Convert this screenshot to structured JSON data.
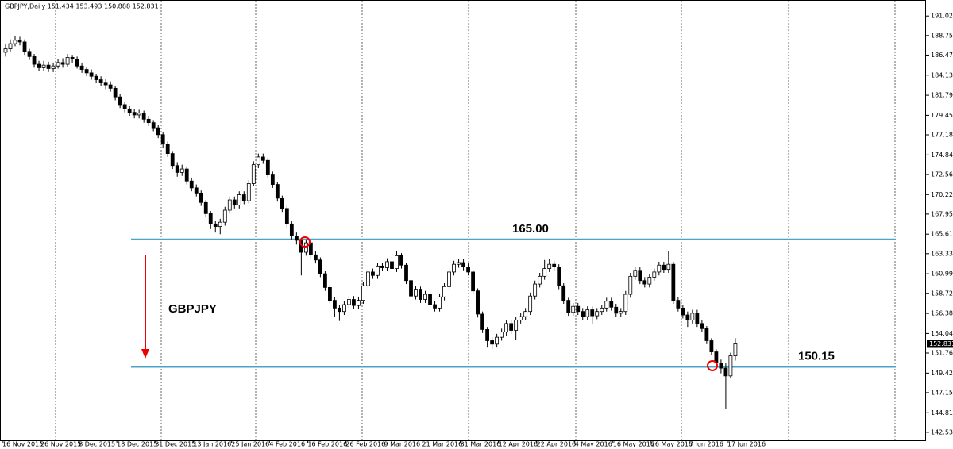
{
  "chart_data": {
    "type": "candlestick",
    "title": "GBPJPY,Daily  151.434 153.493 150.888 152.831",
    "annotation": "GBPJPY",
    "up_color": "#ffffff",
    "down_color": "#000000",
    "level_color": "#4ba3c7",
    "levels": [
      {
        "value": 165.0,
        "label": "165.00"
      },
      {
        "value": 150.15,
        "label": "150.15"
      }
    ],
    "categories": [
      "16 Nov 2015",
      null,
      null,
      null,
      null,
      null,
      null,
      null,
      "26 Nov 2015",
      null,
      null,
      null,
      null,
      null,
      null,
      null,
      "8 Dec 2015",
      null,
      null,
      null,
      null,
      null,
      null,
      null,
      "18 Dec 2015",
      null,
      null,
      null,
      null,
      null,
      null,
      null,
      "31 Dec 2015",
      null,
      null,
      null,
      null,
      null,
      null,
      null,
      "13 Jan 2016",
      null,
      null,
      null,
      null,
      null,
      null,
      null,
      "25 Jan 2016",
      null,
      null,
      null,
      null,
      null,
      null,
      null,
      "4 Feb 2016",
      null,
      null,
      null,
      null,
      null,
      null,
      null,
      "16 Feb 2016",
      null,
      null,
      null,
      null,
      null,
      null,
      null,
      "26 Feb 2016",
      null,
      null,
      null,
      null,
      null,
      null,
      null,
      "9 Mar 2016",
      null,
      null,
      null,
      null,
      null,
      null,
      null,
      "21 Mar 2016",
      null,
      null,
      null,
      null,
      null,
      null,
      null,
      "31 Mar 2016",
      null,
      null,
      null,
      null,
      null,
      null,
      null,
      "12 Apr 2016",
      null,
      null,
      null,
      null,
      null,
      null,
      null,
      "22 Apr 2016",
      null,
      null,
      null,
      null,
      null,
      null,
      null,
      "4 May 2016",
      null,
      null,
      null,
      null,
      null,
      null,
      null,
      "16 May 2016",
      null,
      null,
      null,
      null,
      null,
      null,
      null,
      "26 May 2016",
      null,
      null,
      null,
      null,
      null,
      null,
      null,
      "7 Jun 2016",
      null,
      null,
      null,
      null,
      null,
      null,
      null,
      "17 Jun 2016",
      null
    ],
    "open": [
      186.8,
      187.2,
      187.8,
      188.2,
      188.0,
      186.9,
      186.3,
      185.4,
      185.0,
      185.3,
      184.9,
      185.2,
      185.6,
      185.4,
      186.2,
      186.0,
      185.2,
      184.8,
      184.4,
      184.0,
      183.6,
      183.3,
      183.0,
      182.6,
      181.6,
      180.7,
      180.2,
      179.8,
      179.5,
      179.7,
      179.0,
      178.6,
      178.0,
      177.2,
      176.1,
      175.0,
      173.6,
      172.8,
      173.2,
      171.8,
      171.0,
      170.4,
      169.3,
      168.0,
      166.8,
      166.5,
      167.0,
      168.4,
      169.6,
      169.0,
      170.2,
      169.5,
      171.5,
      173.7,
      174.6,
      174.2,
      172.6,
      171.4,
      169.8,
      168.6,
      166.8,
      165.4,
      164.9,
      163.5,
      164.6,
      163.2,
      162.6,
      161.0,
      159.4,
      157.9,
      157.0,
      156.6,
      157.4,
      158.0,
      157.3,
      157.9,
      159.6,
      161.2,
      160.8,
      161.9,
      161.7,
      162.4,
      161.6,
      163.1,
      162.0,
      160.2,
      158.4,
      159.2,
      158.0,
      158.6,
      157.4,
      157.0,
      158.3,
      159.5,
      161.2,
      162.1,
      162.3,
      161.8,
      161.2,
      159.0,
      156.3,
      154.5,
      153.2,
      152.8,
      153.6,
      154.2,
      155.2,
      154.4,
      155.6,
      156.0,
      156.6,
      158.4,
      159.8,
      160.7,
      161.6,
      162.1,
      161.8,
      159.6,
      157.9,
      156.5,
      157.2,
      156.6,
      156.0,
      156.8,
      156.1,
      156.6,
      157.0,
      157.8,
      157.1,
      156.4,
      156.6,
      158.6,
      160.7,
      161.4,
      160.2,
      159.8,
      160.6,
      161.2,
      162.0,
      161.5,
      162.1,
      157.9,
      157.0,
      156.2,
      155.6,
      156.4,
      155.2,
      154.6,
      153.2,
      151.9,
      150.6,
      150.0,
      149.1,
      151.434
    ],
    "high": [
      187.7,
      188.3,
      188.7,
      188.6,
      188.3,
      187.2,
      186.6,
      185.8,
      185.8,
      185.7,
      185.6,
      186.0,
      186.1,
      186.6,
      186.5,
      186.3,
      185.6,
      185.1,
      184.8,
      184.3,
      184.0,
      183.7,
      183.4,
      182.9,
      181.9,
      181.0,
      180.6,
      180.2,
      180.1,
      180.0,
      179.4,
      178.9,
      178.3,
      177.5,
      176.4,
      175.3,
      174.0,
      173.7,
      173.5,
      172.2,
      171.4,
      170.7,
      169.6,
      168.3,
      167.2,
      167.4,
      168.8,
      170.0,
      170.0,
      170.6,
      170.6,
      171.9,
      174.1,
      175.0,
      175.0,
      174.5,
      172.9,
      171.7,
      170.1,
      168.9,
      167.1,
      165.8,
      165.2,
      165.0,
      164.9,
      163.6,
      162.9,
      161.3,
      159.7,
      158.3,
      157.4,
      157.8,
      158.4,
      158.4,
      158.3,
      160.0,
      161.6,
      161.6,
      162.3,
      162.3,
      162.8,
      162.8,
      163.6,
      163.4,
      162.3,
      160.5,
      159.6,
      159.5,
      159.0,
      158.9,
      157.8,
      158.7,
      159.9,
      161.6,
      162.5,
      162.7,
      162.7,
      162.2,
      161.5,
      159.3,
      156.6,
      154.8,
      153.6,
      154.0,
      154.6,
      155.6,
      155.6,
      156.0,
      156.4,
      157.0,
      158.8,
      160.2,
      161.1,
      162.6,
      162.7,
      162.5,
      162.1,
      159.9,
      158.2,
      157.6,
      157.6,
      157.0,
      157.2,
      157.2,
      157.0,
      157.4,
      158.2,
      158.2,
      157.5,
      157.0,
      159.0,
      161.1,
      161.8,
      161.8,
      160.6,
      161.0,
      161.6,
      162.4,
      162.4,
      163.6,
      162.4,
      158.3,
      157.4,
      156.6,
      156.8,
      156.8,
      155.6,
      154.9,
      153.5,
      152.2,
      151.0,
      150.6,
      151.8,
      153.493
    ],
    "low": [
      186.3,
      186.9,
      187.5,
      187.6,
      186.5,
      185.9,
      185.0,
      184.6,
      184.6,
      184.5,
      184.5,
      184.9,
      185.0,
      185.1,
      185.6,
      184.9,
      184.4,
      184.0,
      183.6,
      183.2,
      182.9,
      182.5,
      182.2,
      181.2,
      180.3,
      179.8,
      179.4,
      179.1,
      179.1,
      178.6,
      178.2,
      177.6,
      176.8,
      175.7,
      174.6,
      173.2,
      172.3,
      172.4,
      171.4,
      170.6,
      170.0,
      168.9,
      167.6,
      166.2,
      165.8,
      165.6,
      166.6,
      168.0,
      168.6,
      168.6,
      169.1,
      169.2,
      171.2,
      173.3,
      173.8,
      172.2,
      171.0,
      169.4,
      168.2,
      166.4,
      165.0,
      164.4,
      160.8,
      163.1,
      162.8,
      162.2,
      160.6,
      159.0,
      157.5,
      156.0,
      155.5,
      156.2,
      157.0,
      156.9,
      156.9,
      157.5,
      159.2,
      160.4,
      160.4,
      161.3,
      161.3,
      161.2,
      161.2,
      161.6,
      159.8,
      158.0,
      158.0,
      157.6,
      157.6,
      157.0,
      156.6,
      156.6,
      157.9,
      159.1,
      160.8,
      161.7,
      161.4,
      160.8,
      158.6,
      155.9,
      154.1,
      152.4,
      152.2,
      152.4,
      153.2,
      153.8,
      154.0,
      153.3,
      155.2,
      155.6,
      156.2,
      158.0,
      159.4,
      160.3,
      161.2,
      161.4,
      159.2,
      157.5,
      156.1,
      156.1,
      156.2,
      155.6,
      155.6,
      155.2,
      155.7,
      156.2,
      156.6,
      156.7,
      156.0,
      156.0,
      156.2,
      158.2,
      160.3,
      159.8,
      159.4,
      159.4,
      160.2,
      160.8,
      161.1,
      161.1,
      157.5,
      156.6,
      155.8,
      154.8,
      155.2,
      154.8,
      154.2,
      152.8,
      151.5,
      150.2,
      149.4,
      145.3,
      148.8,
      150.888
    ],
    "close": [
      187.2,
      187.8,
      188.2,
      188.0,
      186.9,
      186.3,
      185.4,
      185.0,
      185.3,
      184.9,
      185.2,
      185.6,
      185.4,
      186.2,
      186.0,
      185.2,
      184.8,
      184.4,
      184.0,
      183.6,
      183.3,
      183.0,
      182.6,
      181.6,
      180.7,
      180.2,
      179.8,
      179.5,
      179.7,
      179.0,
      178.6,
      178.0,
      177.2,
      176.1,
      175.0,
      173.6,
      172.8,
      173.2,
      171.8,
      171.0,
      170.4,
      169.3,
      168.0,
      166.8,
      166.5,
      167.0,
      168.4,
      169.6,
      169.0,
      170.2,
      169.5,
      171.5,
      173.7,
      174.6,
      174.2,
      172.6,
      171.4,
      169.8,
      168.6,
      166.8,
      165.4,
      164.9,
      163.5,
      164.6,
      163.2,
      162.6,
      161.0,
      159.4,
      157.9,
      157.0,
      156.6,
      157.4,
      158.0,
      157.3,
      157.9,
      159.6,
      161.2,
      160.8,
      161.9,
      161.7,
      162.4,
      161.6,
      163.1,
      162.0,
      160.2,
      158.4,
      159.2,
      158.0,
      158.6,
      157.4,
      157.0,
      158.3,
      159.5,
      161.2,
      162.1,
      162.3,
      161.8,
      161.2,
      159.0,
      156.3,
      154.5,
      153.2,
      152.8,
      153.6,
      154.2,
      155.2,
      154.4,
      155.6,
      156.0,
      156.6,
      158.4,
      159.8,
      160.7,
      161.6,
      162.1,
      161.8,
      159.6,
      157.9,
      156.5,
      157.2,
      156.6,
      156.0,
      156.8,
      156.1,
      156.6,
      157.0,
      157.8,
      157.1,
      156.4,
      156.6,
      158.6,
      160.7,
      161.4,
      160.2,
      159.8,
      160.6,
      161.2,
      162.0,
      161.5,
      162.1,
      157.9,
      157.0,
      156.2,
      155.6,
      156.4,
      155.2,
      154.6,
      153.2,
      151.9,
      150.6,
      150.0,
      149.1,
      151.434,
      152.831
    ],
    "ylim": [
      141.6,
      192.8
    ],
    "yticks": [
      191.025,
      {
        "value": 188.75,
        "label": "188.750"
      },
      186.475,
      184.135,
      181.795,
      179.455,
      {
        "value": 177.18,
        "label": "177.180"
      },
      {
        "value": 174.84,
        "label": "174.840"
      },
      172.565,
      170.225,
      {
        "value": 167.95,
        "label": "167.950"
      },
      {
        "value": 165.61,
        "label": "165.610"
      },
      163.335,
      160.995,
      {
        "value": 158.72,
        "label": "158.720"
      },
      {
        "value": 156.38,
        "label": "156.380"
      },
      {
        "value": 154.04,
        "label": "154.040"
      },
      151.765,
      149.425,
      {
        "value": 147.15,
        "label": "147.150"
      },
      {
        "value": 144.81,
        "label": "144.810"
      },
      142.535
    ]
  }
}
